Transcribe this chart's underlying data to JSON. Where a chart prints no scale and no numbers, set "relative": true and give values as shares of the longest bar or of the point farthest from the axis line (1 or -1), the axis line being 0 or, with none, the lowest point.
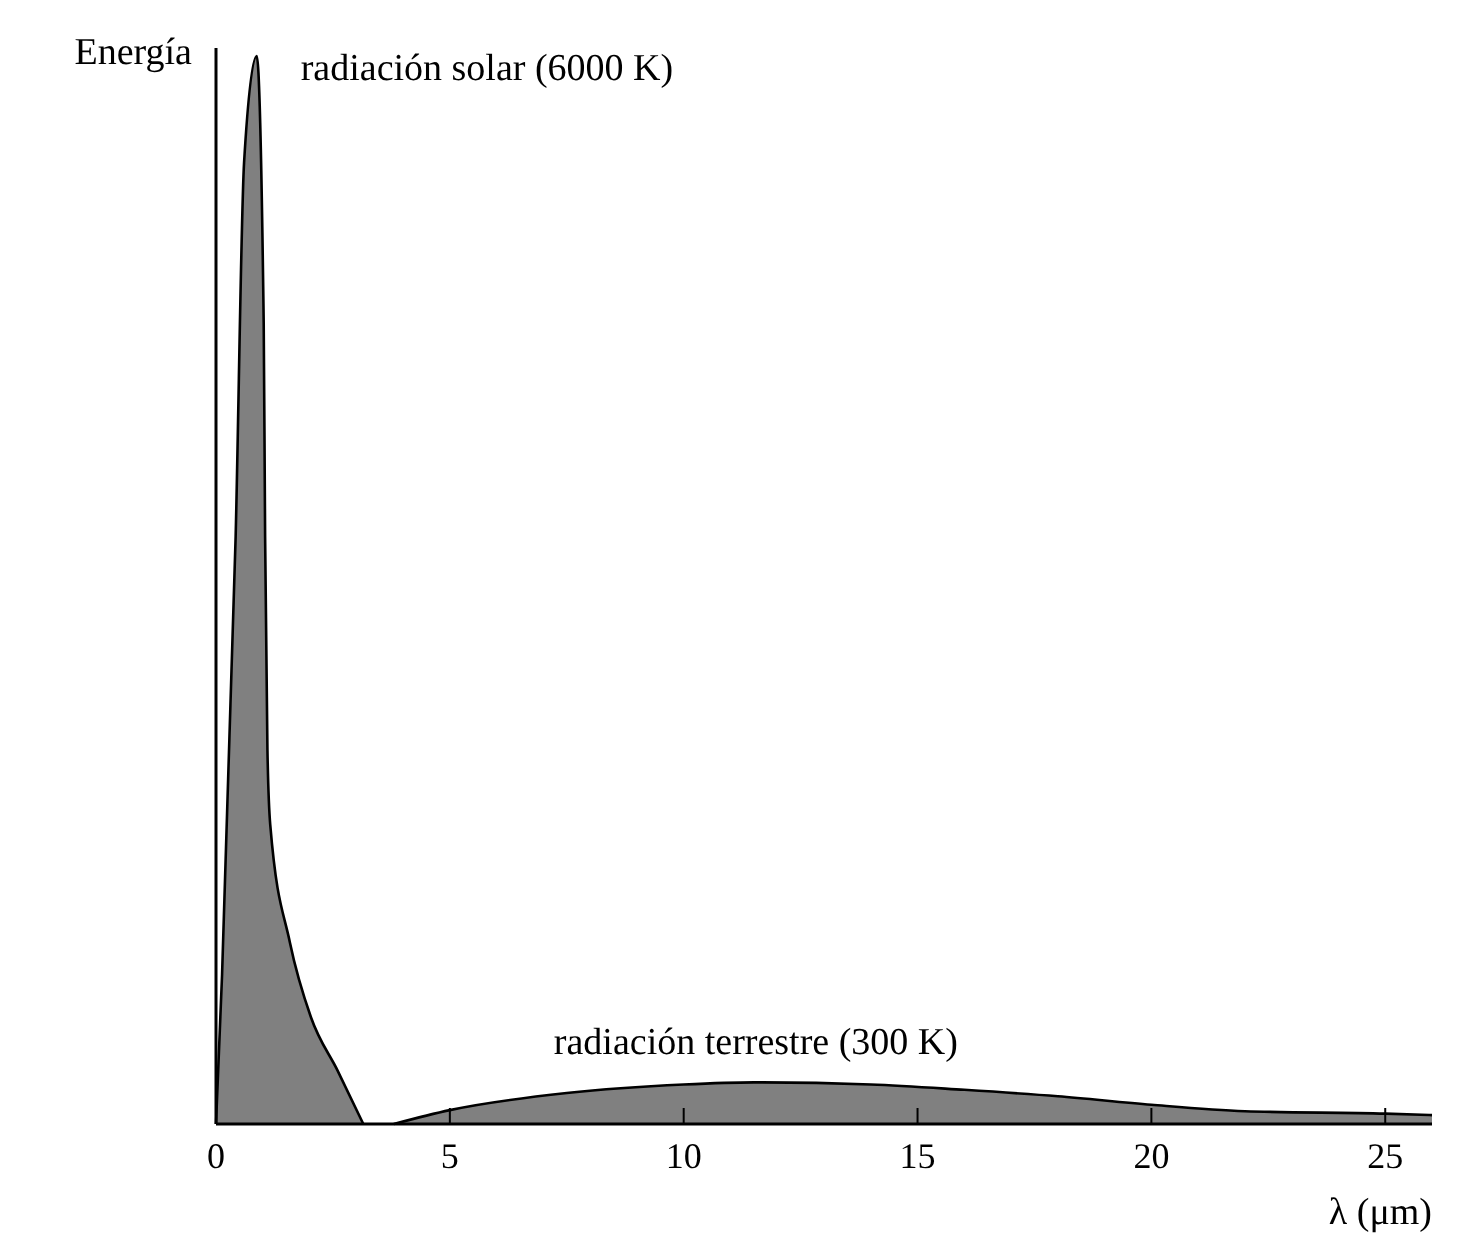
{
  "chart_data": {
    "type": "area",
    "relative": true,
    "ylabel": "Energía",
    "xlabel": "λ (μm)",
    "xlim": [
      0,
      26
    ],
    "xticks": [
      0,
      5,
      10,
      15,
      20,
      25
    ],
    "grid": false,
    "series": [
      {
        "name": "radiación solar (6000 K)",
        "color": "#808080",
        "x": [
          0,
          0.13,
          0.42,
          0.6,
          0.87,
          1.02,
          1.05,
          1.1,
          1.16,
          1.58,
          2.03,
          2.6,
          3.15
        ],
        "values": [
          0,
          0.14,
          0.55,
          0.9,
          1,
          0.75,
          0.55,
          0.35,
          0.28,
          0.17,
          0.1,
          0.05,
          0
        ]
      },
      {
        "name": "radiación terrestre (300 K)",
        "color": "#808080",
        "x": [
          3.8,
          5,
          7.5,
          10,
          11.5,
          14,
          16,
          18,
          20,
          22,
          25,
          26
        ],
        "values": [
          0,
          0.013,
          0.029,
          0.037,
          0.039,
          0.037,
          0.032,
          0.026,
          0.018,
          0.012,
          0.0097,
          0.0083
        ]
      }
    ]
  }
}
